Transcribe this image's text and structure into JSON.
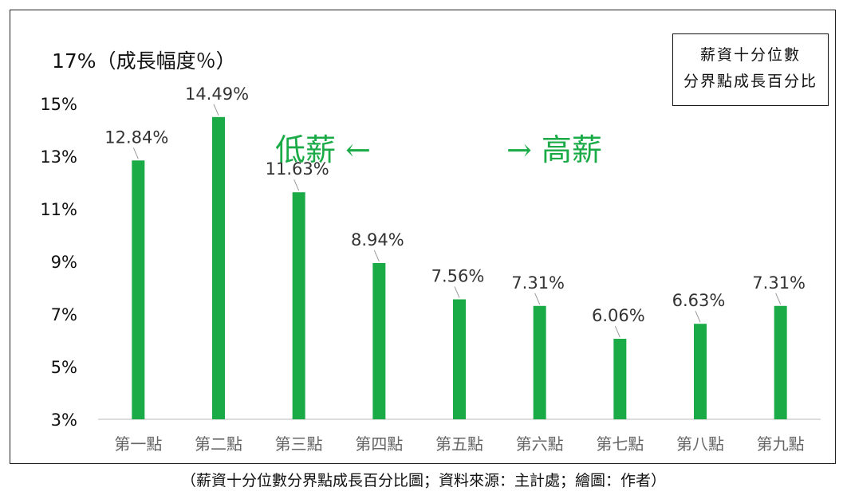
{
  "chart_data": {
    "type": "bar",
    "y_axis_label": "17%（成長幅度％）",
    "categories": [
      "第一點",
      "第二點",
      "第三點",
      "第四點",
      "第五點",
      "第六點",
      "第七點",
      "第八點",
      "第九點"
    ],
    "values": [
      12.84,
      14.49,
      11.63,
      8.94,
      7.56,
      7.31,
      6.06,
      6.63,
      7.31
    ],
    "data_labels": [
      "12.84%",
      "14.49%",
      "11.63%",
      "8.94%",
      "7.56%",
      "7.31%",
      "6.06%",
      "6.63%",
      "7.31%"
    ],
    "y_ticks": [
      3,
      5,
      7,
      9,
      11,
      13,
      15,
      17
    ],
    "y_tick_labels": [
      "3%",
      "5%",
      "7%",
      "9%",
      "11%",
      "13%",
      "15%",
      ""
    ],
    "ylim": [
      3,
      17
    ],
    "bar_color": "#1aab47",
    "grid": false,
    "legend_lines": [
      "薪資十分位數",
      "分界點成長百分比"
    ],
    "annotations": {
      "low": "低薪 ←",
      "high": "→ 高薪",
      "color": "#1aab47"
    }
  },
  "caption": "（薪資十分位數分界點成長百分比圖；資料來源：主計處；繪圖：作者）"
}
